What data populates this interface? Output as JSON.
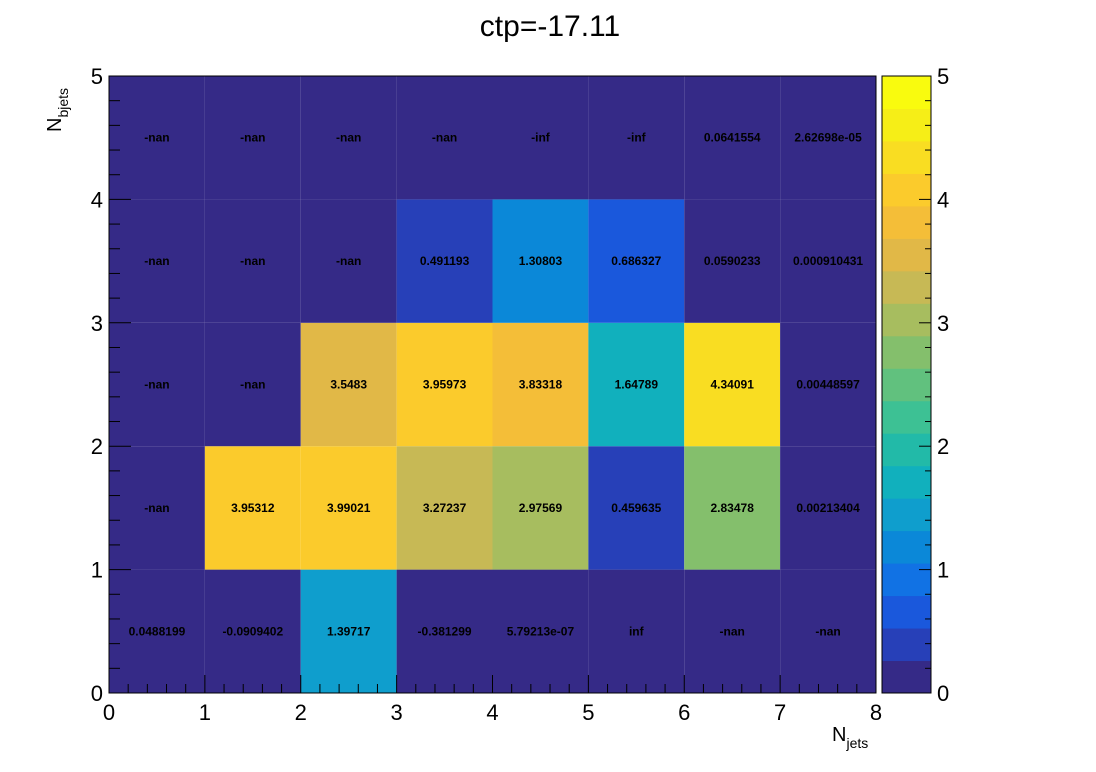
{
  "chart_data": {
    "type": "heatmap",
    "title": "ctp=-17.11",
    "xlabel": "N",
    "xlabel_sub": "jets",
    "ylabel": "N",
    "ylabel_sub": "bjets",
    "x_edges": [
      0,
      1,
      2,
      3,
      4,
      5,
      6,
      7,
      8
    ],
    "y_edges": [
      0,
      1,
      2,
      3,
      4,
      5
    ],
    "xlim": [
      0,
      8
    ],
    "ylim": [
      0,
      5
    ],
    "zlim": [
      0,
      5
    ],
    "x_ticks": [
      "0",
      "1",
      "2",
      "3",
      "4",
      "5",
      "6",
      "7",
      "8"
    ],
    "y_ticks": [
      "0",
      "1",
      "2",
      "3",
      "4",
      "5"
    ],
    "colorbar_ticks": [
      "0",
      "1",
      "2",
      "3",
      "4",
      "5"
    ],
    "colormap": [
      "#352a87",
      "#2740b8",
      "#1a58dc",
      "#1172e4",
      "#0b88d8",
      "#0f9ecd",
      "#11b0bd",
      "#22baa8",
      "#3dc194",
      "#61c17e",
      "#84bf6c",
      "#a7bd5f",
      "#c7b955",
      "#e1b847",
      "#f4be38",
      "#fbcb2c",
      "#f9dd22",
      "#f6ee17",
      "#f9fb0e"
    ],
    "rows": [
      {
        "y": 0,
        "labels": [
          "0.0488199",
          "-0.0909402",
          "1.39717",
          "-0.381299",
          "5.79213e-07",
          "inf",
          "-nan",
          "-nan"
        ],
        "z": [
          0.0488199,
          -0.0909402,
          1.39717,
          -0.381299,
          5.79213e-07,
          null,
          null,
          null
        ]
      },
      {
        "y": 1,
        "labels": [
          "-nan",
          "3.95312",
          "3.99021",
          "3.27237",
          "2.97569",
          "0.459635",
          "2.83478",
          "0.00213404"
        ],
        "z": [
          null,
          3.95312,
          3.99021,
          3.27237,
          2.97569,
          0.459635,
          2.83478,
          0.00213404
        ]
      },
      {
        "y": 2,
        "labels": [
          "-nan",
          "-nan",
          "3.5483",
          "3.95973",
          "3.83318",
          "1.64789",
          "4.34091",
          "0.00448597"
        ],
        "z": [
          null,
          null,
          3.5483,
          3.95973,
          3.83318,
          1.64789,
          4.34091,
          0.00448597
        ]
      },
      {
        "y": 3,
        "labels": [
          "-nan",
          "-nan",
          "-nan",
          "0.491193",
          "1.30803",
          "0.686327",
          "0.0590233",
          "0.000910431"
        ],
        "z": [
          null,
          null,
          null,
          0.491193,
          1.30803,
          0.686327,
          0.0590233,
          0.000910431
        ]
      },
      {
        "y": 4,
        "labels": [
          "-nan",
          "-nan",
          "-nan",
          "-nan",
          "-inf",
          "-inf",
          "0.0641554",
          "2.62698e-05"
        ],
        "z": [
          null,
          null,
          null,
          null,
          null,
          null,
          0.0641554,
          2.62698e-05
        ]
      }
    ]
  }
}
